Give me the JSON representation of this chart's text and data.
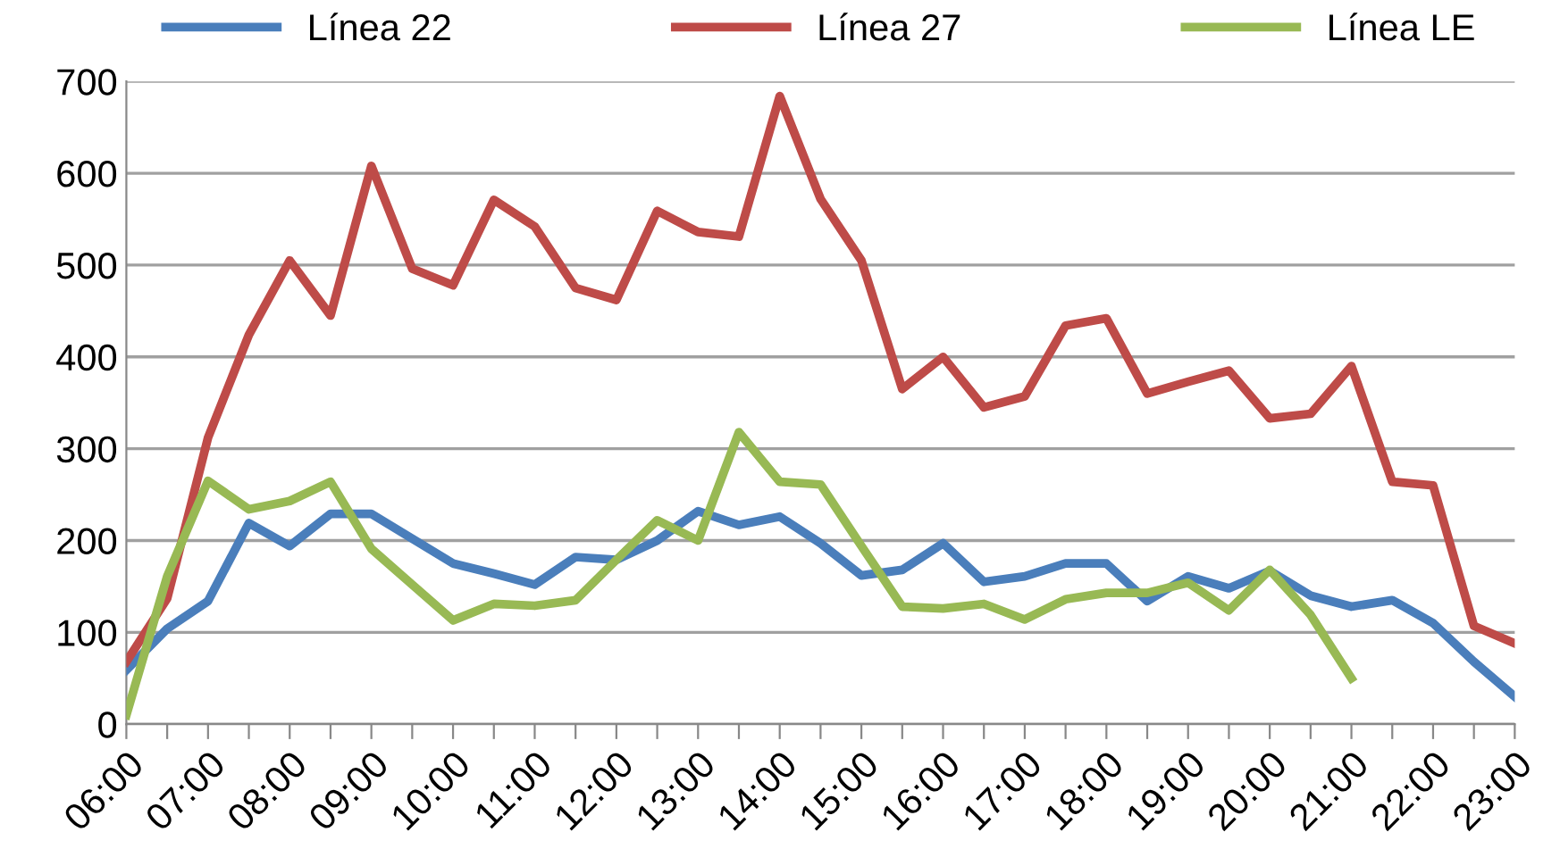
{
  "chart_data": {
    "type": "line",
    "categories": [
      "06:00",
      null,
      "07:00",
      null,
      "08:00",
      null,
      "09:00",
      null,
      "10:00",
      null,
      "11:00",
      null,
      "12:00",
      null,
      "13:00",
      null,
      "14:00",
      null,
      "15:00",
      null,
      "16:00",
      null,
      "17:00",
      null,
      "18:00",
      null,
      "19:00",
      null,
      "20:00",
      null,
      "21:00",
      null,
      "22:00",
      null,
      "23:00"
    ],
    "series": [
      {
        "name": "Línea 22",
        "color": "#4a7ebb",
        "values": [
          59,
          104,
          134,
          219,
          194,
          229,
          229,
          202,
          175,
          164,
          152,
          182,
          179,
          200,
          232,
          217,
          226,
          197,
          162,
          168,
          197,
          155,
          161,
          175,
          175,
          134,
          161,
          148,
          167,
          140,
          128,
          135,
          110,
          68,
          30
        ]
      },
      {
        "name": "Línea 27",
        "color": "#be4b48",
        "values": [
          68,
          137,
          312,
          424,
          505,
          445,
          608,
          496,
          478,
          571,
          542,
          475,
          462,
          559,
          536,
          531,
          684,
          572,
          505,
          365,
          400,
          345,
          357,
          434,
          442,
          360,
          373,
          385,
          333,
          338,
          390,
          264,
          260,
          107,
          88
        ]
      },
      {
        "name": "Línea LE",
        "color": "#98b954",
        "values": [
          10,
          161,
          265,
          234,
          243,
          264,
          191,
          152,
          113,
          131,
          129,
          135,
          179,
          222,
          200,
          318,
          264,
          261,
          194,
          128,
          126,
          131,
          114,
          136,
          143,
          143,
          154,
          124,
          168,
          119,
          50,
          null,
          null,
          null,
          null
        ]
      }
    ],
    "ylim": [
      0,
      700
    ],
    "yticks": [
      0,
      100,
      200,
      300,
      400,
      500,
      600,
      700
    ],
    "grid": "y",
    "legend": "top",
    "marker": "none",
    "line_style": "solid"
  }
}
